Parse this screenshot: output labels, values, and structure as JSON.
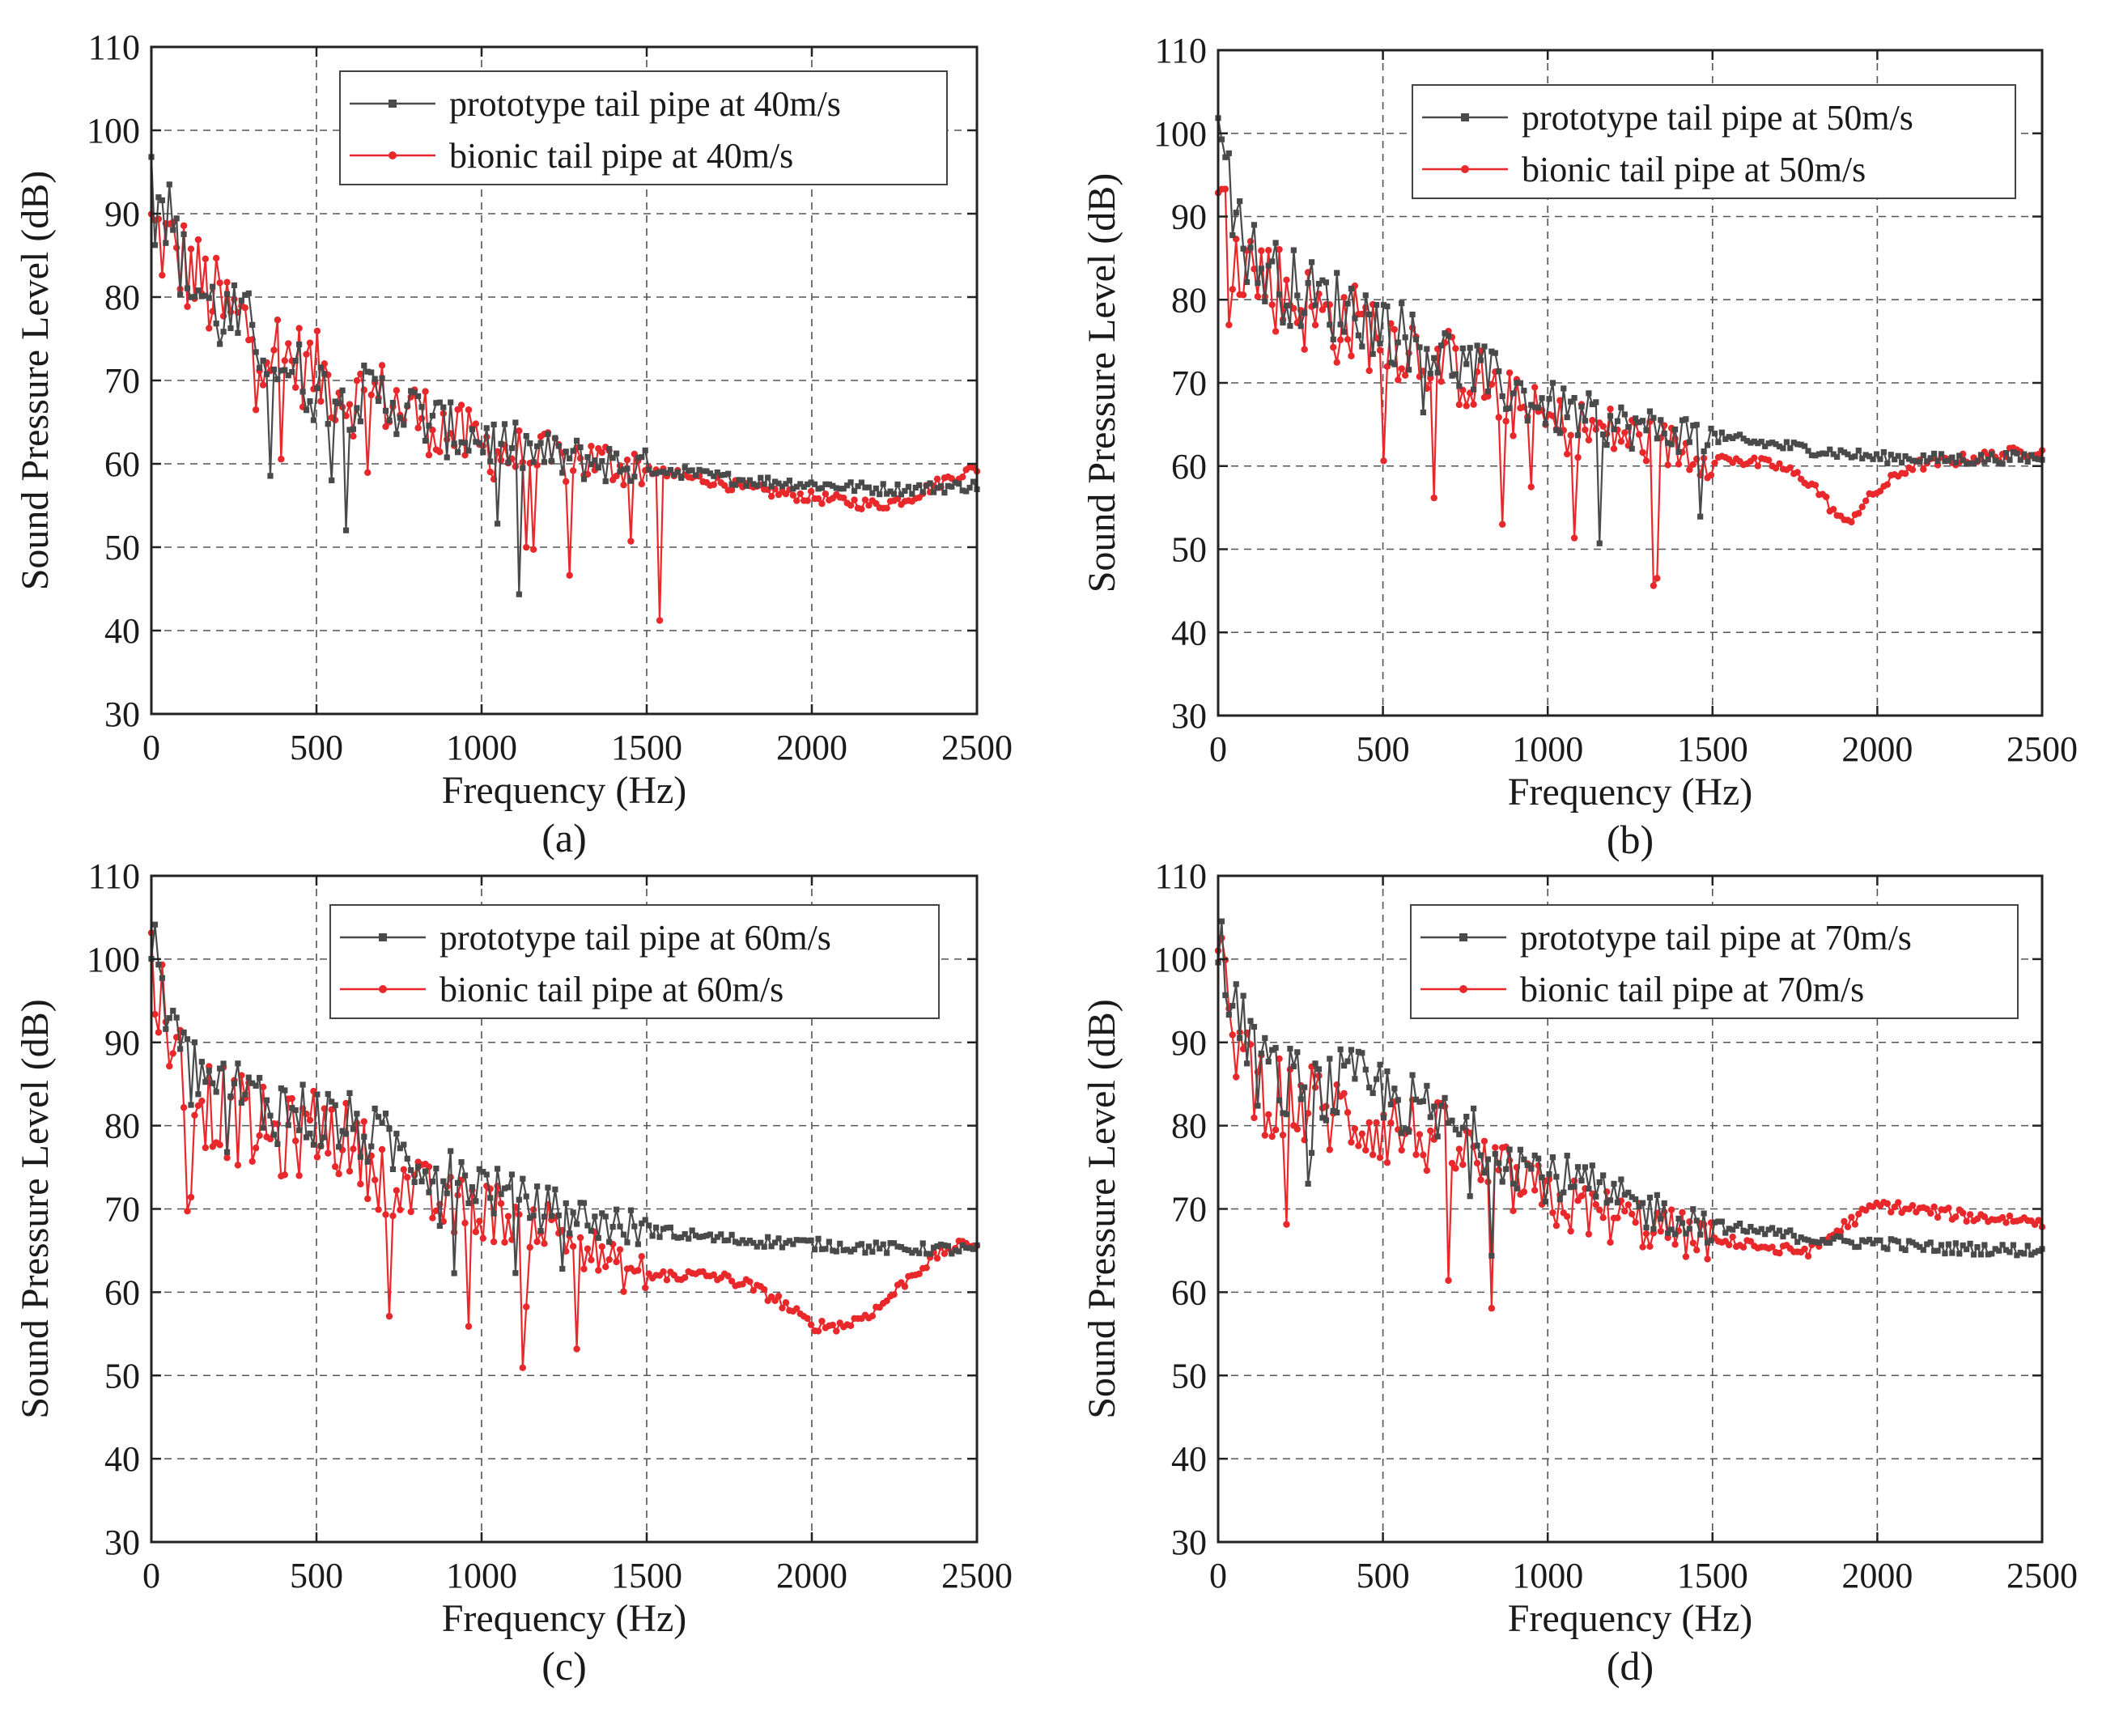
{
  "colors": {
    "prototype": "#4a4a4a",
    "bionic": "#e8282b"
  },
  "chart_data": [
    {
      "type": "line",
      "caption": "(a)",
      "xlabel": "Frequency (Hz)",
      "ylabel": "Sound Pressure Level (dB)",
      "xlim": [
        0,
        2500
      ],
      "ylim": [
        30,
        110
      ],
      "xticks": [
        "0",
        "500",
        "1000",
        "1500",
        "2000",
        "2500"
      ],
      "yticks": [
        "30",
        "40",
        "50",
        "60",
        "70",
        "80",
        "90",
        "100",
        "110"
      ],
      "grid": true,
      "legend_position": "top-right",
      "x": [
        0,
        100,
        200,
        300,
        400,
        500,
        600,
        700,
        800,
        900,
        1000,
        1100,
        1200,
        1300,
        1400,
        1500,
        1600,
        1700,
        1800,
        1900,
        2000,
        2100,
        2200,
        2300,
        2400,
        2500
      ],
      "series": [
        {
          "name": "prototype tail pipe at 40m/s",
          "color": "prototype",
          "values": [
            97,
            83,
            78,
            76,
            72,
            69,
            68,
            68,
            66,
            64,
            63,
            62,
            61,
            60.5,
            60,
            59.5,
            59,
            58.5,
            58,
            57.8,
            57.5,
            57.3,
            57,
            57,
            57.2,
            57.4
          ]
        },
        {
          "name": "bionic tail pipe at 40m/s",
          "color": "bionic",
          "values": [
            88,
            84,
            79,
            76,
            73,
            71,
            68,
            68,
            66,
            64,
            62,
            61,
            60.5,
            60.5,
            60,
            59.5,
            58.5,
            58,
            57,
            56.5,
            56,
            55.5,
            55,
            56,
            58,
            59.5
          ]
        }
      ]
    },
    {
      "type": "line",
      "caption": "(b)",
      "xlabel": "Frequency (Hz)",
      "ylabel": "Sound Pressure Level (dB)",
      "xlim": [
        0,
        2500
      ],
      "ylim": [
        30,
        110
      ],
      "xticks": [
        "0",
        "500",
        "1000",
        "1500",
        "2000",
        "2500"
      ],
      "yticks": [
        "30",
        "40",
        "50",
        "60",
        "70",
        "80",
        "90",
        "100",
        "110"
      ],
      "grid": true,
      "legend_position": "top-right",
      "x": [
        0,
        100,
        200,
        300,
        400,
        500,
        600,
        700,
        800,
        900,
        1000,
        1100,
        1200,
        1300,
        1400,
        1500,
        1600,
        1700,
        1800,
        1900,
        2000,
        2100,
        2200,
        2300,
        2400,
        2500
      ],
      "series": [
        {
          "name": "prototype tail pipe at 50m/s",
          "color": "prototype",
          "values": [
            99,
            85,
            82,
            80,
            79,
            77,
            75,
            73,
            71,
            69,
            67,
            66,
            65,
            64.5,
            64,
            63.5,
            63,
            62.5,
            62,
            61.5,
            61,
            61,
            60.8,
            60.8,
            61,
            61
          ]
        },
        {
          "name": "bionic tail pipe at 50m/s",
          "color": "bionic",
          "values": [
            92,
            84,
            81,
            78,
            77,
            76,
            74,
            72,
            70,
            67,
            65,
            64.5,
            64,
            63,
            62,
            61,
            60.5,
            60,
            58,
            53,
            57,
            60,
            60.5,
            61,
            61.5,
            62
          ]
        }
      ]
    },
    {
      "type": "line",
      "caption": "(c)",
      "xlabel": "Frequency (Hz)",
      "ylabel": "Sound Pressure Level (dB)",
      "xlim": [
        0,
        2500
      ],
      "ylim": [
        30,
        110
      ],
      "xticks": [
        "0",
        "500",
        "1000",
        "1500",
        "2000",
        "2500"
      ],
      "yticks": [
        "30",
        "40",
        "50",
        "60",
        "70",
        "80",
        "90",
        "100",
        "110"
      ],
      "grid": true,
      "legend_position": "top-right",
      "x": [
        0,
        100,
        200,
        300,
        400,
        500,
        600,
        700,
        800,
        900,
        1000,
        1100,
        1200,
        1300,
        1400,
        1500,
        1600,
        1700,
        1800,
        1900,
        2000,
        2100,
        2200,
        2300,
        2400,
        2500
      ],
      "series": [
        {
          "name": "prototype tail pipe at 60m/s",
          "color": "prototype",
          "values": [
            101,
            87,
            85,
            83,
            82,
            81,
            80,
            78,
            76,
            74,
            73,
            71,
            70,
            69,
            68,
            67.5,
            67,
            66.5,
            66.2,
            66,
            65.8,
            65.5,
            65.3,
            65.2,
            65.2,
            65
          ]
        },
        {
          "name": "bionic tail pipe at 60m/s",
          "color": "bionic",
          "values": [
            100,
            85,
            82,
            80,
            78,
            80,
            78,
            74,
            72,
            70,
            70,
            69,
            68,
            66,
            63,
            62,
            62,
            62,
            61,
            59,
            56,
            56,
            58,
            62,
            65,
            66
          ]
        }
      ]
    },
    {
      "type": "line",
      "caption": "(d)",
      "xlabel": "Frequency (Hz)",
      "ylabel": "Sound Pressure Level (dB)",
      "xlim": [
        0,
        2500
      ],
      "ylim": [
        30,
        110
      ],
      "xticks": [
        "0",
        "500",
        "1000",
        "1500",
        "2000",
        "2500"
      ],
      "yticks": [
        "30",
        "40",
        "50",
        "60",
        "70",
        "80",
        "90",
        "100",
        "110"
      ],
      "grid": true,
      "legend_position": "top-right",
      "x": [
        0,
        100,
        200,
        300,
        400,
        500,
        600,
        700,
        800,
        900,
        1000,
        1100,
        1200,
        1300,
        1400,
        1500,
        1600,
        1700,
        1800,
        1900,
        2000,
        2100,
        2200,
        2300,
        2400,
        2500
      ],
      "series": [
        {
          "name": "prototype tail pipe at 70m/s",
          "color": "prototype",
          "values": [
            102,
            88,
            85,
            84,
            85,
            84,
            82,
            80,
            78,
            76,
            74,
            73,
            71,
            70,
            69,
            68,
            67.5,
            67,
            66.5,
            66,
            66,
            65.5,
            65.3,
            65.2,
            65.1,
            65
          ]
        },
        {
          "name": "bionic tail pipe at 70m/s",
          "color": "bionic",
          "values": [
            98,
            86,
            83,
            82,
            81,
            80,
            79,
            78,
            75,
            73,
            71,
            70,
            69,
            68,
            67,
            66,
            66,
            65,
            65,
            68,
            70.5,
            70,
            69.5,
            69,
            68.8,
            68.5
          ]
        }
      ]
    }
  ]
}
